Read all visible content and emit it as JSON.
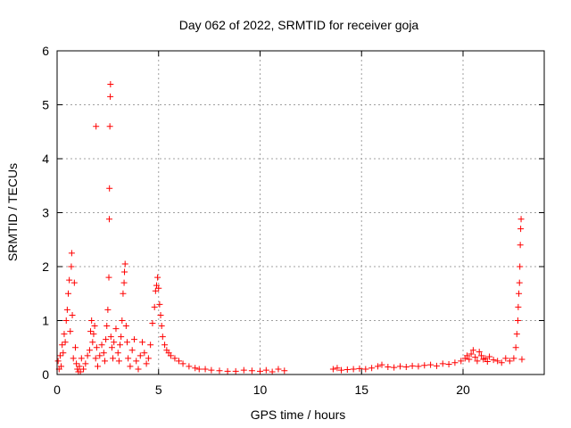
{
  "chart_data": {
    "type": "scatter",
    "title": "Day 062 of 2022, SRMTID for receiver goja",
    "xlabel": "GPS time / hours",
    "ylabel": "SRMTID / TECUs",
    "xlim": [
      0,
      24
    ],
    "ylim": [
      0,
      6
    ],
    "xticks": [
      0,
      5,
      10,
      15,
      20
    ],
    "yticks": [
      0,
      1,
      2,
      3,
      4,
      5,
      6
    ],
    "grid": true,
    "marker": "+",
    "color": "#ff0000",
    "series": [
      {
        "name": "SRMTID",
        "points": [
          [
            0.05,
            0.25
          ],
          [
            0.1,
            0.1
          ],
          [
            0.15,
            0.35
          ],
          [
            0.2,
            0.15
          ],
          [
            0.25,
            0.55
          ],
          [
            0.3,
            0.4
          ],
          [
            0.35,
            0.75
          ],
          [
            0.4,
            0.6
          ],
          [
            0.45,
            1.0
          ],
          [
            0.5,
            1.2
          ],
          [
            0.55,
            1.5
          ],
          [
            0.6,
            1.75
          ],
          [
            0.65,
            0.8
          ],
          [
            0.7,
            2.0
          ],
          [
            0.72,
            2.25
          ],
          [
            0.75,
            1.1
          ],
          [
            0.8,
            0.3
          ],
          [
            0.85,
            1.7
          ],
          [
            0.9,
            0.5
          ],
          [
            0.95,
            0.2
          ],
          [
            1.0,
            0.1
          ],
          [
            1.05,
            0.05
          ],
          [
            1.1,
            0.15
          ],
          [
            1.15,
            0.05
          ],
          [
            1.2,
            0.3
          ],
          [
            1.3,
            0.1
          ],
          [
            1.4,
            0.2
          ],
          [
            1.5,
            0.35
          ],
          [
            1.6,
            0.45
          ],
          [
            1.65,
            0.8
          ],
          [
            1.7,
            1.0
          ],
          [
            1.75,
            0.6
          ],
          [
            1.8,
            0.75
          ],
          [
            1.85,
            0.9
          ],
          [
            1.9,
            0.3
          ],
          [
            1.92,
            4.6
          ],
          [
            1.95,
            0.5
          ],
          [
            2.0,
            0.15
          ],
          [
            2.1,
            0.35
          ],
          [
            2.2,
            0.55
          ],
          [
            2.3,
            0.4
          ],
          [
            2.35,
            0.25
          ],
          [
            2.4,
            0.65
          ],
          [
            2.45,
            0.9
          ],
          [
            2.5,
            1.2
          ],
          [
            2.55,
            1.8
          ],
          [
            2.57,
            2.88
          ],
          [
            2.58,
            3.45
          ],
          [
            2.6,
            4.6
          ],
          [
            2.62,
            5.15
          ],
          [
            2.63,
            5.38
          ],
          [
            2.65,
            0.7
          ],
          [
            2.7,
            0.5
          ],
          [
            2.75,
            0.3
          ],
          [
            2.8,
            0.6
          ],
          [
            2.9,
            0.85
          ],
          [
            3.0,
            0.4
          ],
          [
            3.05,
            0.25
          ],
          [
            3.1,
            0.55
          ],
          [
            3.15,
            0.7
          ],
          [
            3.2,
            1.0
          ],
          [
            3.25,
            1.5
          ],
          [
            3.3,
            1.7
          ],
          [
            3.32,
            1.9
          ],
          [
            3.35,
            2.05
          ],
          [
            3.4,
            0.9
          ],
          [
            3.45,
            0.6
          ],
          [
            3.5,
            0.3
          ],
          [
            3.6,
            0.15
          ],
          [
            3.7,
            0.45
          ],
          [
            3.8,
            0.65
          ],
          [
            3.9,
            0.25
          ],
          [
            4.0,
            0.1
          ],
          [
            4.1,
            0.35
          ],
          [
            4.2,
            0.6
          ],
          [
            4.3,
            0.4
          ],
          [
            4.4,
            0.2
          ],
          [
            4.5,
            0.3
          ],
          [
            4.6,
            0.55
          ],
          [
            4.7,
            0.95
          ],
          [
            4.8,
            1.25
          ],
          [
            4.85,
            1.55
          ],
          [
            4.9,
            1.65
          ],
          [
            4.95,
            1.8
          ],
          [
            5.0,
            1.6
          ],
          [
            5.05,
            1.3
          ],
          [
            5.1,
            1.1
          ],
          [
            5.15,
            0.9
          ],
          [
            5.2,
            0.7
          ],
          [
            5.3,
            0.55
          ],
          [
            5.4,
            0.45
          ],
          [
            5.5,
            0.4
          ],
          [
            5.6,
            0.35
          ],
          [
            5.8,
            0.3
          ],
          [
            6.0,
            0.25
          ],
          [
            6.2,
            0.2
          ],
          [
            6.5,
            0.15
          ],
          [
            6.8,
            0.12
          ],
          [
            7.0,
            0.1
          ],
          [
            7.3,
            0.1
          ],
          [
            7.6,
            0.08
          ],
          [
            8.0,
            0.07
          ],
          [
            8.4,
            0.06
          ],
          [
            8.8,
            0.06
          ],
          [
            9.2,
            0.08
          ],
          [
            9.6,
            0.07
          ],
          [
            10.0,
            0.06
          ],
          [
            10.3,
            0.08
          ],
          [
            10.6,
            0.05
          ],
          [
            10.9,
            0.1
          ],
          [
            11.2,
            0.07
          ],
          [
            13.6,
            0.1
          ],
          [
            13.8,
            0.12
          ],
          [
            14.0,
            0.08
          ],
          [
            14.3,
            0.09
          ],
          [
            14.6,
            0.1
          ],
          [
            14.9,
            0.11
          ],
          [
            15.2,
            0.1
          ],
          [
            15.5,
            0.12
          ],
          [
            15.8,
            0.15
          ],
          [
            16.0,
            0.18
          ],
          [
            16.3,
            0.14
          ],
          [
            16.6,
            0.13
          ],
          [
            16.9,
            0.15
          ],
          [
            17.2,
            0.14
          ],
          [
            17.5,
            0.16
          ],
          [
            17.8,
            0.15
          ],
          [
            18.1,
            0.17
          ],
          [
            18.4,
            0.18
          ],
          [
            18.7,
            0.16
          ],
          [
            19.0,
            0.2
          ],
          [
            19.3,
            0.19
          ],
          [
            19.6,
            0.22
          ],
          [
            19.9,
            0.25
          ],
          [
            20.1,
            0.3
          ],
          [
            20.2,
            0.35
          ],
          [
            20.3,
            0.28
          ],
          [
            20.4,
            0.38
          ],
          [
            20.5,
            0.45
          ],
          [
            20.6,
            0.32
          ],
          [
            20.7,
            0.25
          ],
          [
            20.8,
            0.42
          ],
          [
            20.9,
            0.35
          ],
          [
            21.0,
            0.28
          ],
          [
            21.1,
            0.3
          ],
          [
            21.2,
            0.24
          ],
          [
            21.3,
            0.33
          ],
          [
            21.5,
            0.27
          ],
          [
            21.7,
            0.25
          ],
          [
            21.9,
            0.22
          ],
          [
            22.1,
            0.3
          ],
          [
            22.3,
            0.25
          ],
          [
            22.5,
            0.3
          ],
          [
            22.6,
            0.5
          ],
          [
            22.65,
            0.75
          ],
          [
            22.7,
            1.0
          ],
          [
            22.72,
            1.25
          ],
          [
            22.75,
            1.5
          ],
          [
            22.78,
            1.7
          ],
          [
            22.8,
            2.0
          ],
          [
            22.82,
            2.4
          ],
          [
            22.84,
            2.7
          ],
          [
            22.86,
            2.88
          ],
          [
            22.9,
            0.28
          ]
        ]
      }
    ]
  }
}
